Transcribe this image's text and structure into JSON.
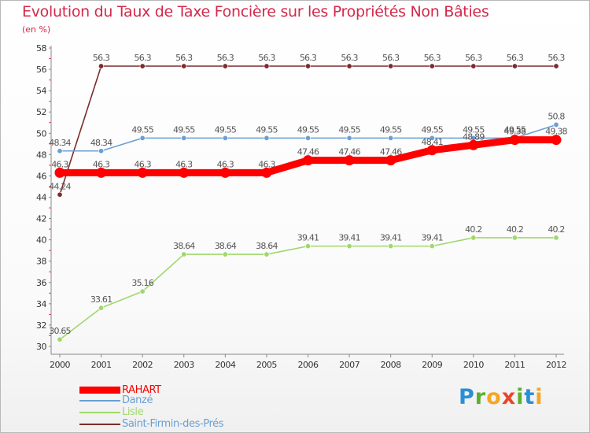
{
  "chart_data": {
    "type": "line",
    "title": "Evolution du Taux de Taxe Foncière sur les Propriétés Non Bâties",
    "subtitle": "(en %)",
    "xlabel": "",
    "ylabel": "",
    "ylim": [
      30,
      58
    ],
    "ytick_step": 2,
    "grid": false,
    "categories": [
      "2000",
      "2001",
      "2002",
      "2003",
      "2004",
      "2005",
      "2006",
      "2007",
      "2008",
      "2009",
      "2010",
      "2011",
      "2012"
    ],
    "series": [
      {
        "name": "RAHART",
        "color": "#ff0000",
        "emphasis": true,
        "values": [
          46.3,
          46.3,
          46.3,
          46.3,
          46.3,
          46.3,
          47.46,
          47.46,
          47.46,
          48.41,
          48.89,
          49.38,
          49.38
        ],
        "labels": [
          "46.3",
          "46.3",
          "46.3",
          "46.3",
          "46.3",
          "46.3",
          "47.46",
          "47.46",
          "47.46",
          "48.41",
          "48.89",
          "49.38",
          "49.38"
        ]
      },
      {
        "name": "Danzé",
        "color": "#6a9fd4",
        "emphasis": false,
        "values": [
          48.34,
          48.34,
          49.55,
          49.55,
          49.55,
          49.55,
          49.55,
          49.55,
          49.55,
          49.55,
          49.55,
          49.55,
          50.8
        ],
        "labels": [
          "48.34",
          "48.34",
          "49.55",
          "49.55",
          "49.55",
          "49.55",
          "49.55",
          "49.55",
          "49.55",
          "49.55",
          "49.55",
          "49.55",
          "50.8"
        ]
      },
      {
        "name": "Lisle",
        "color": "#9fd86b",
        "emphasis": false,
        "values": [
          30.65,
          33.61,
          35.16,
          38.64,
          38.64,
          38.64,
          39.41,
          39.41,
          39.41,
          39.41,
          40.2,
          40.2,
          40.2
        ],
        "labels": [
          "30.65",
          "33.61",
          "35.16",
          "38.64",
          "38.64",
          "38.64",
          "39.41",
          "39.41",
          "39.41",
          "39.41",
          "40.2",
          "40.2",
          "40.2"
        ]
      },
      {
        "name": "Saint-Firmin-des-Prés",
        "color": "#7b2c2c",
        "emphasis": false,
        "values": [
          44.24,
          56.3,
          56.3,
          56.3,
          56.3,
          56.3,
          56.3,
          56.3,
          56.3,
          56.3,
          56.3,
          56.3,
          56.3
        ],
        "labels": [
          "44.24",
          "56.3",
          "56.3",
          "56.3",
          "56.3",
          "56.3",
          "56.3",
          "56.3",
          "56.3",
          "56.3",
          "56.3",
          "56.3",
          "56.3"
        ]
      }
    ]
  },
  "legend": {
    "position": "bottom-left",
    "items": [
      {
        "label": "RAHART",
        "color": "#ff0000"
      },
      {
        "label": "Danzé",
        "color": "#6a9fd4"
      },
      {
        "label": "Lisle",
        "color": "#9fd86b"
      },
      {
        "label": "Saint-Firmin-des-Prés",
        "color": "#7b2c2c"
      }
    ]
  },
  "logo": {
    "text": "Proxiti"
  }
}
